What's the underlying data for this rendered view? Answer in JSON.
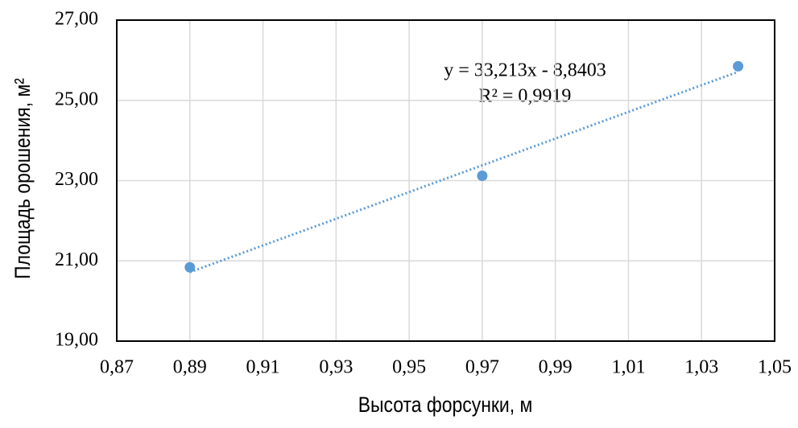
{
  "chart_data": {
    "type": "scatter",
    "x_label": "Высота форсунки, м",
    "y_label": "Площадь орошения, м²",
    "annotations": [
      "y = 33,213x - 8,8403",
      "R² = 0,9919"
    ],
    "series": [
      {
        "name": "Площадь орошения",
        "color": "#5b9bd5",
        "x": [
          0.89,
          0.97,
          1.04
        ],
        "values": [
          20.84,
          23.12,
          25.85
        ]
      }
    ],
    "trendline": "linear",
    "xlim": [
      0.87,
      1.05
    ],
    "xticks": [
      {
        "value": 0.87,
        "label": "0,87"
      },
      {
        "value": 0.89,
        "label": "0,89"
      },
      {
        "value": 0.91,
        "label": "0,91"
      },
      {
        "value": 0.93,
        "label": "0,93"
      },
      {
        "value": 0.95,
        "label": "0,95"
      },
      {
        "value": 0.97,
        "label": "0,97"
      },
      {
        "value": 0.99,
        "label": "0,99"
      },
      {
        "value": 1.01,
        "label": "1,01"
      },
      {
        "value": 1.03,
        "label": "1,03"
      },
      {
        "value": 1.05,
        "label": "1,05"
      }
    ],
    "ylim": [
      19,
      27
    ],
    "yticks": [
      {
        "value": 19,
        "label": "19,00"
      },
      {
        "value": 21,
        "label": "21,00"
      },
      {
        "value": 23,
        "label": "23,00"
      },
      {
        "value": 25,
        "label": "25,00"
      },
      {
        "value": 27,
        "label": "27,00"
      }
    ],
    "grid": true
  }
}
